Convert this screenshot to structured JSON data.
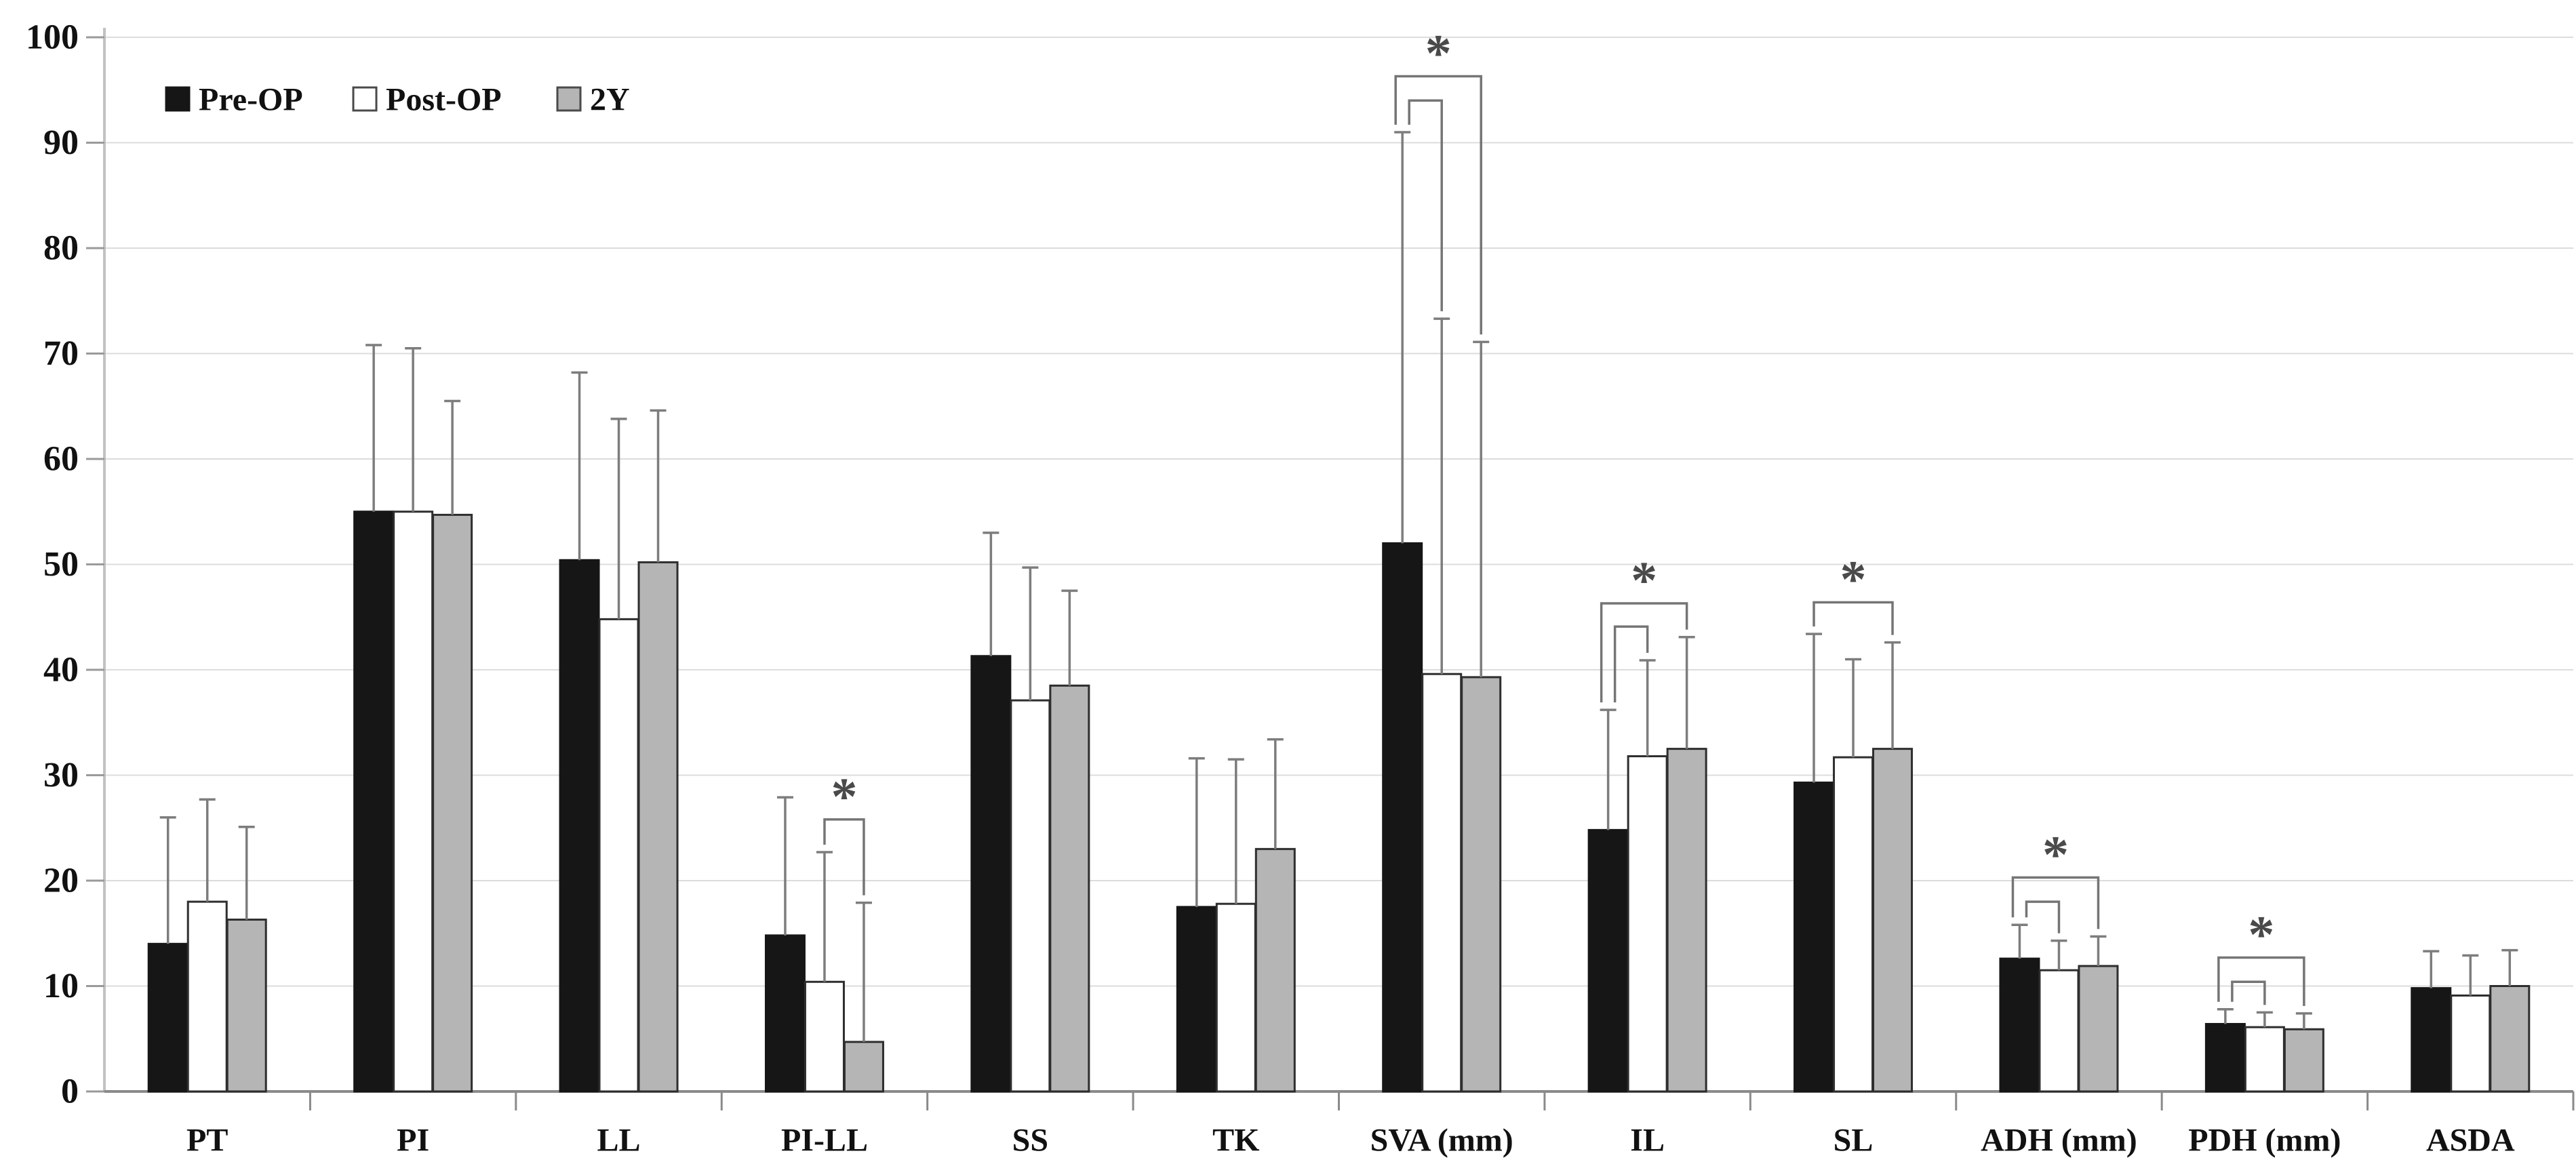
{
  "figure": {
    "background": "#ffffff"
  },
  "legend": {
    "items": [
      {
        "key": "pre",
        "label": "Pre-OP",
        "swatch": "#161616",
        "swatch_border": "#161616"
      },
      {
        "key": "post",
        "label": "Post-OP",
        "swatch": "#ffffff",
        "swatch_border": "#4a4a4a"
      },
      {
        "key": "2y",
        "label": "2Y",
        "swatch": "#b5b5b5",
        "swatch_border": "#4a4a4a"
      }
    ]
  },
  "chart_data": {
    "type": "bar",
    "title": "",
    "xlabel": "",
    "ylabel": "",
    "grid": true,
    "legend_position": "top-left",
    "categories": [
      "PT",
      "PI",
      "LL",
      "PI-LL",
      "SS",
      "TK",
      "SVA (mm)",
      "IL",
      "SL",
      "ADH (mm)",
      "PDH (mm)",
      "ASDA"
    ],
    "series": [
      {
        "name": "Pre-OP",
        "key": "pre",
        "color": "#161616",
        "border": "#161616",
        "values": [
          14.0,
          55.0,
          50.4,
          14.8,
          41.3,
          17.5,
          52.0,
          24.8,
          29.3,
          12.6,
          6.4,
          9.8
        ],
        "error_top": [
          26.0,
          70.8,
          68.2,
          27.9,
          53.0,
          31.6,
          91.0,
          36.2,
          43.4,
          15.8,
          7.8,
          13.3
        ]
      },
      {
        "name": "Post-OP",
        "key": "post",
        "color": "#ffffff",
        "border": "#2e2e2e",
        "values": [
          18.0,
          55.0,
          44.8,
          10.4,
          37.1,
          17.8,
          39.6,
          31.8,
          31.7,
          11.5,
          6.1,
          9.1
        ],
        "error_top": [
          27.7,
          70.5,
          63.8,
          22.7,
          49.7,
          31.5,
          73.3,
          40.9,
          41.0,
          14.3,
          7.5,
          12.9
        ]
      },
      {
        "name": "2Y",
        "key": "2y",
        "color": "#b5b5b5",
        "border": "#2e2e2e",
        "values": [
          16.3,
          54.7,
          50.2,
          4.7,
          38.5,
          23.0,
          39.3,
          32.5,
          32.5,
          11.9,
          5.9,
          10.0
        ],
        "error_top": [
          25.1,
          65.5,
          64.6,
          17.9,
          47.5,
          33.4,
          71.1,
          43.1,
          42.6,
          14.7,
          7.4,
          13.4
        ]
      }
    ],
    "significance_marker": "*",
    "significance": [
      {
        "category": "PI-LL",
        "from": "post",
        "to": "2y",
        "top": 25.8,
        "asterisk": true
      },
      {
        "category": "SVA (mm)",
        "from": "pre",
        "to": "post",
        "top": 94.0,
        "asterisk": false
      },
      {
        "category": "SVA (mm)",
        "from": "pre",
        "to": "2y",
        "top": 96.3,
        "asterisk": true
      },
      {
        "category": "IL",
        "from": "pre",
        "to": "post",
        "top": 44.1,
        "asterisk": false
      },
      {
        "category": "IL",
        "from": "pre",
        "to": "2y",
        "top": 46.3,
        "asterisk": true
      },
      {
        "category": "SL",
        "from": "pre",
        "to": "2y",
        "top": 46.4,
        "asterisk": true
      },
      {
        "category": "ADH (mm)",
        "from": "pre",
        "to": "post",
        "top": 18.0,
        "asterisk": false
      },
      {
        "category": "ADH (mm)",
        "from": "pre",
        "to": "2y",
        "top": 20.3,
        "asterisk": true
      },
      {
        "category": "PDH (mm)",
        "from": "pre",
        "to": "post",
        "top": 10.4,
        "asterisk": false
      },
      {
        "category": "PDH (mm)",
        "from": "pre",
        "to": "2y",
        "top": 12.7,
        "asterisk": true
      }
    ],
    "yaxis": {
      "min": 0,
      "max": 100,
      "step": 10,
      "tick_labels": [
        "0",
        "10",
        "20",
        "30",
        "40",
        "50",
        "60",
        "70",
        "80",
        "90",
        "100"
      ]
    },
    "colors": {
      "grid": "#dcdcdc",
      "axis": "#8a8a8a",
      "yaxis_line": "#c2c2c2",
      "error_bar": "#7d7d7d",
      "bracket": "#757575",
      "asterisk": "#4a4a4a",
      "text": "#111111"
    }
  }
}
